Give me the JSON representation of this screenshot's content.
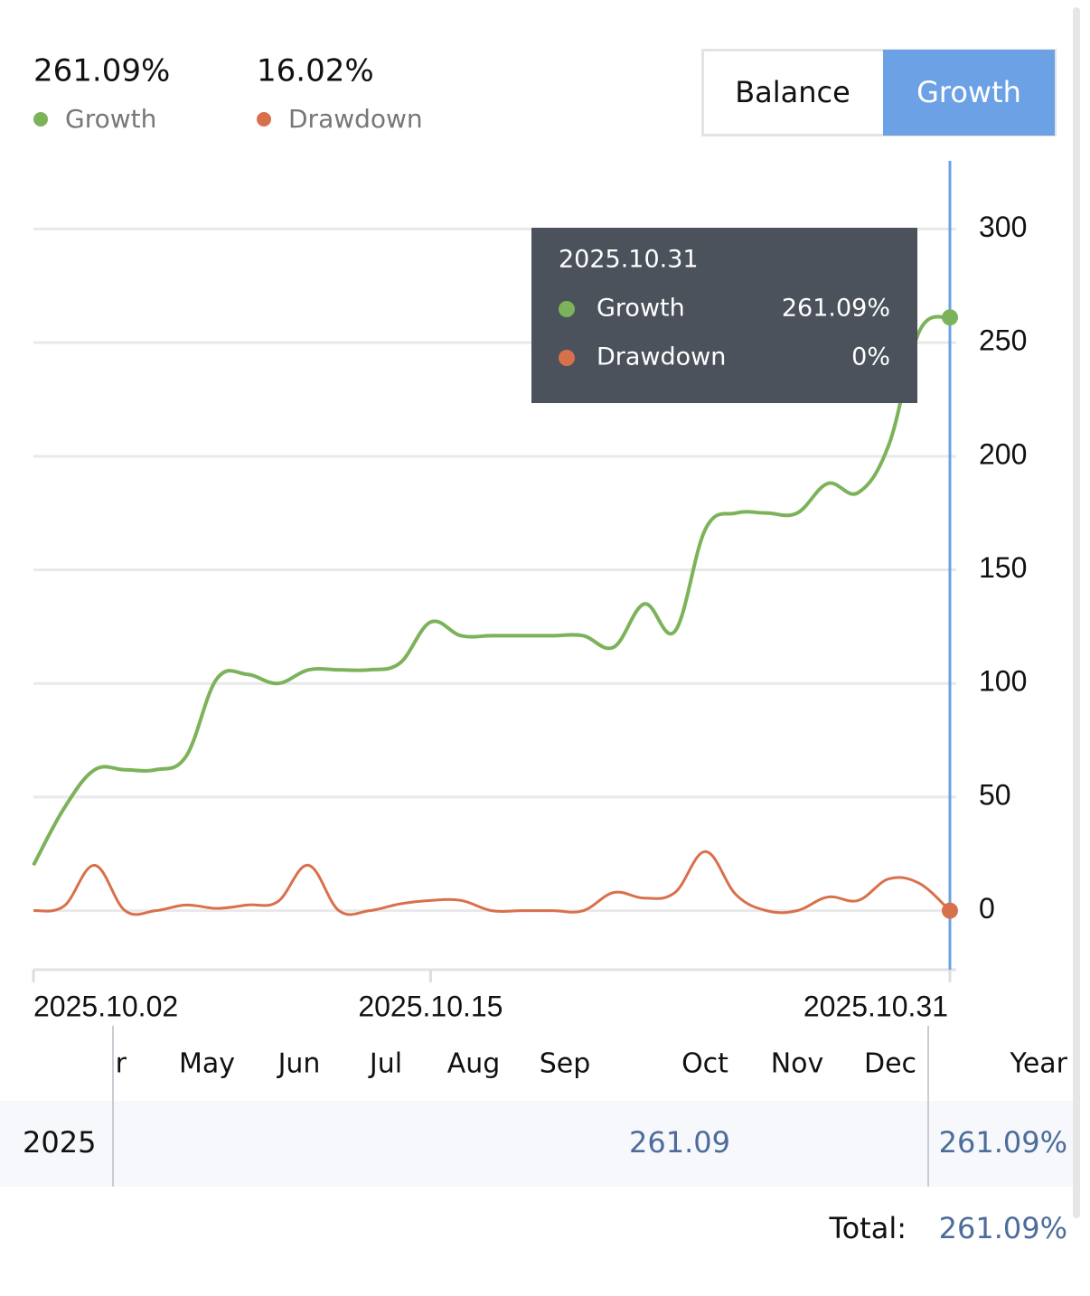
{
  "summary": {
    "growth": "261.09%",
    "drawdown": "16.02%"
  },
  "buttons": [
    "Balance",
    "Growth"
  ],
  "chart_data": {
    "type": "line",
    "categories": [
      "2025.10.02",
      null,
      null,
      null,
      null,
      null,
      null,
      null,
      null,
      null,
      null,
      null,
      null,
      "2025.10.15",
      null,
      null,
      null,
      null,
      null,
      null,
      null,
      null,
      null,
      null,
      null,
      null,
      null,
      null,
      null,
      null,
      "2025.10.31"
    ],
    "series": [
      {
        "name": "Growth",
        "color": "#7cb35a",
        "values": [
          20,
          45,
          62,
          62,
          62,
          68,
          102,
          104,
          100,
          106,
          106,
          106,
          109,
          127,
          121,
          121,
          121,
          121,
          121,
          116,
          135,
          123,
          168,
          175,
          175,
          175,
          188,
          184,
          205,
          255,
          261.09
        ]
      },
      {
        "name": "Drawdown",
        "color": "#d9704c",
        "values": [
          0,
          2,
          20,
          0,
          0,
          2.5,
          1,
          2.5,
          4,
          20,
          0,
          0,
          3,
          4.5,
          4.5,
          0,
          0,
          0,
          0,
          8,
          5.5,
          8,
          26,
          7,
          0,
          0,
          6,
          4.5,
          14,
          12,
          0
        ]
      }
    ],
    "ylim": [
      -26,
      330
    ],
    "yticks": [
      0,
      50,
      100,
      150,
      200,
      250,
      300
    ],
    "grid": true,
    "tooltip": {
      "date": "2025.10.31",
      "values": [
        "261.09%",
        "0%"
      ]
    }
  },
  "table": {
    "columns": [
      "Apr",
      "May",
      "Jun",
      "Jul",
      "Aug",
      "Sep",
      "Oct",
      "Nov",
      "Dec",
      "Year"
    ],
    "rows": [
      {
        "year": "2025",
        "value": "261.09",
        "total": "261.09%"
      }
    ],
    "total_label": "Total:",
    "total_value": "261.09%"
  }
}
